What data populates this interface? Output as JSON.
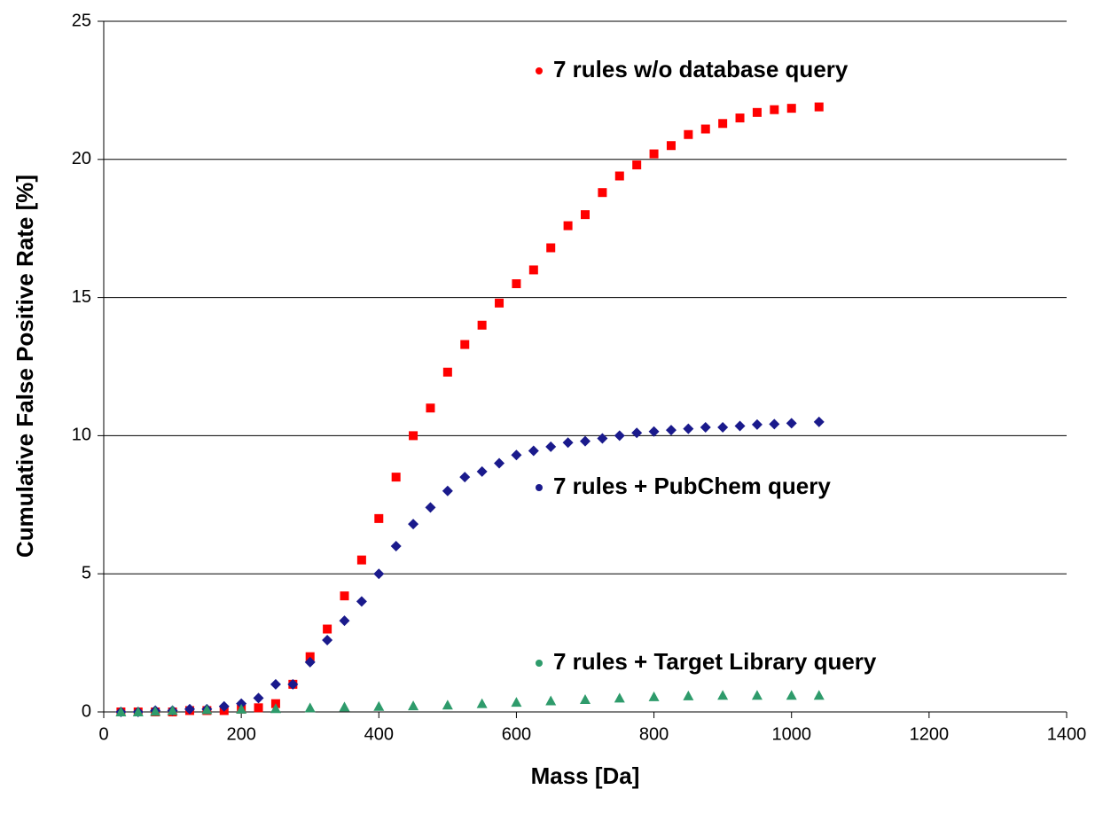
{
  "chart_data": {
    "type": "scatter",
    "xlabel": "Mass [Da]",
    "ylabel": "Cumulative False Positive Rate [%]",
    "xlim": [
      0,
      1400
    ],
    "xticks": [
      0,
      200,
      400,
      600,
      800,
      1000,
      1200,
      1400
    ],
    "ylim": [
      0,
      25
    ],
    "yticks": [
      0,
      5,
      10,
      15,
      20,
      25
    ],
    "grid": true,
    "series": [
      {
        "name": "7 rules w/o database query",
        "color": "#ff0000",
        "marker": "square",
        "x": [
          25,
          50,
          75,
          100,
          125,
          150,
          175,
          200,
          225,
          250,
          275,
          300,
          325,
          350,
          375,
          400,
          425,
          450,
          475,
          500,
          525,
          550,
          575,
          600,
          625,
          650,
          675,
          700,
          725,
          750,
          775,
          800,
          825,
          850,
          875,
          900,
          925,
          950,
          975,
          1000,
          1040
        ],
        "values": [
          0,
          0,
          0,
          0,
          0.05,
          0.05,
          0.05,
          0.1,
          0.15,
          0.3,
          1.0,
          2.0,
          3.0,
          4.2,
          5.5,
          7.0,
          8.5,
          10.0,
          11.0,
          12.3,
          13.3,
          14.0,
          14.8,
          15.5,
          16.0,
          16.8,
          17.6,
          18.0,
          18.8,
          19.4,
          19.8,
          20.2,
          20.5,
          20.9,
          21.1,
          21.3,
          21.5,
          21.7,
          21.8,
          21.85,
          21.9
        ]
      },
      {
        "name": "7 rules + PubChem query",
        "color": "#1a1a8c",
        "marker": "diamond",
        "x": [
          25,
          50,
          75,
          100,
          125,
          150,
          175,
          200,
          225,
          250,
          275,
          300,
          325,
          350,
          375,
          400,
          425,
          450,
          475,
          500,
          525,
          550,
          575,
          600,
          625,
          650,
          675,
          700,
          725,
          750,
          775,
          800,
          825,
          850,
          875,
          900,
          925,
          950,
          975,
          1000,
          1040
        ],
        "values": [
          0,
          0,
          0.05,
          0.05,
          0.1,
          0.1,
          0.2,
          0.3,
          0.5,
          1.0,
          1.0,
          1.8,
          2.6,
          3.3,
          4.0,
          5.0,
          6.0,
          6.8,
          7.4,
          8.0,
          8.5,
          8.7,
          9.0,
          9.3,
          9.45,
          9.6,
          9.75,
          9.8,
          9.9,
          10.0,
          10.1,
          10.15,
          10.2,
          10.25,
          10.3,
          10.3,
          10.35,
          10.4,
          10.42,
          10.45,
          10.5
        ]
      },
      {
        "name": "7 rules + Target Library query",
        "color": "#2e9b6b",
        "marker": "triangle",
        "x": [
          25,
          50,
          75,
          100,
          150,
          200,
          250,
          300,
          350,
          400,
          450,
          500,
          550,
          600,
          650,
          700,
          750,
          800,
          850,
          900,
          950,
          1000,
          1040
        ],
        "values": [
          0,
          0,
          0.02,
          0.05,
          0.08,
          0.1,
          0.12,
          0.15,
          0.18,
          0.2,
          0.22,
          0.25,
          0.3,
          0.35,
          0.4,
          0.45,
          0.5,
          0.55,
          0.58,
          0.6,
          0.6,
          0.6,
          0.6
        ]
      }
    ]
  }
}
